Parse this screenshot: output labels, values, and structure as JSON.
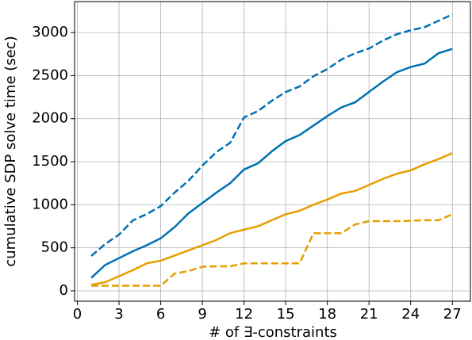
{
  "chart_data": {
    "type": "line",
    "x_label": "# of ∃-constraints",
    "y_label": "cumulative SDP solve time (sec)",
    "x": [
      1,
      2,
      3,
      4,
      5,
      6,
      7,
      8,
      9,
      10,
      11,
      12,
      13,
      14,
      15,
      16,
      17,
      18,
      19,
      20,
      21,
      22,
      23,
      24,
      25,
      26,
      27
    ],
    "series": [
      {
        "color": "#0072b2",
        "dashed": true,
        "values": [
          405,
          543,
          653,
          819,
          892,
          984,
          1141,
          1279,
          1454,
          1610,
          1720,
          2015,
          2088,
          2208,
          2309,
          2374,
          2493,
          2576,
          2686,
          2760,
          2815,
          2907,
          2981,
          3027,
          3063,
          3137,
          3211
        ]
      },
      {
        "color": "#0072b2",
        "dashed": false,
        "values": [
          150,
          300,
          380,
          460,
          530,
          610,
          740,
          900,
          1020,
          1140,
          1250,
          1410,
          1480,
          1620,
          1740,
          1810,
          1920,
          2030,
          2130,
          2190,
          2310,
          2430,
          2540,
          2600,
          2640,
          2760,
          2810
        ]
      },
      {
        "color": "#e69f00",
        "dashed": false,
        "values": [
          70,
          100,
          170,
          240,
          320,
          350,
          410,
          470,
          530,
          590,
          670,
          710,
          750,
          820,
          890,
          930,
          1000,
          1060,
          1130,
          1160,
          1230,
          1300,
          1360,
          1400,
          1470,
          1530,
          1600
        ]
      },
      {
        "color": "#e69f00",
        "dashed": true,
        "values": [
          60,
          60,
          60,
          60,
          60,
          60,
          200,
          230,
          280,
          285,
          285,
          320,
          320,
          320,
          320,
          320,
          670,
          670,
          670,
          770,
          810,
          810,
          810,
          815,
          820,
          820,
          890
        ]
      }
    ],
    "xlim": [
      -0.2,
      28.3
    ],
    "xticks": [
      0,
      3,
      6,
      9,
      12,
      15,
      18,
      21,
      24,
      27
    ],
    "ylim": [
      -120,
      3360
    ],
    "yticks": [
      0,
      500,
      1000,
      1500,
      2000,
      2500,
      3000
    ],
    "grid": true
  }
}
